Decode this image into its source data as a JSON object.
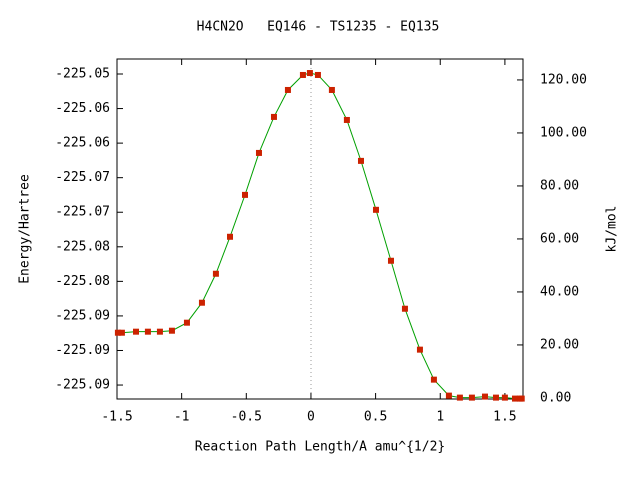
{
  "chart_data": {
    "type": "line",
    "title": "H4CN2O   EQ146 - TS1235 - EQ135",
    "xlabel": "Reaction Path Length/A amu^{1/2}",
    "ylabel": "Energy/Hartree",
    "y2label": "kJ/mol",
    "x": [
      -1.493,
      -1.462,
      -1.353,
      -1.261,
      -1.168,
      -1.075,
      -0.959,
      -0.843,
      -0.735,
      -0.626,
      -0.51,
      -0.402,
      -0.286,
      -0.178,
      -0.062,
      -0.008,
      0.054,
      0.162,
      0.278,
      0.387,
      0.503,
      0.619,
      0.727,
      0.843,
      0.951,
      1.067,
      1.152,
      1.245,
      1.346,
      1.431,
      1.5,
      1.578,
      1.616,
      1.63
    ],
    "values": [
      -225.08743,
      -225.08743,
      -225.08728,
      -225.08728,
      -225.08728,
      -225.08714,
      -225.08598,
      -225.08309,
      -225.0789,
      -225.07355,
      -225.06749,
      -225.06142,
      -225.05621,
      -225.05231,
      -225.05014,
      -225.04986,
      -225.05014,
      -225.05231,
      -225.05665,
      -225.06257,
      -225.06965,
      -225.07702,
      -225.08396,
      -225.08988,
      -225.09422,
      -225.09653,
      -225.09682,
      -225.09682,
      -225.09667,
      -225.09682,
      -225.09682,
      -225.09696,
      -225.09696,
      -225.09696
    ],
    "line_color": "#00a000",
    "marker_color": "#cc2200",
    "xlim": [
      -1.5,
      1.64
    ],
    "xticks": [
      -1.5,
      -1,
      -0.5,
      0,
      0.5,
      1,
      1.5
    ],
    "ylim": [
      -225.09702,
      -225.04783
    ],
    "yticks": [
      {
        "value": -225.095,
        "label": "-225.09"
      },
      {
        "value": -225.09,
        "label": "-225.09"
      },
      {
        "value": -225.085,
        "label": "-225.09"
      },
      {
        "value": -225.08,
        "label": "-225.08"
      },
      {
        "value": -225.075,
        "label": "-225.08"
      },
      {
        "value": -225.07,
        "label": "-225.07"
      },
      {
        "value": -225.065,
        "label": "-225.07"
      },
      {
        "value": -225.06,
        "label": "-225.06"
      },
      {
        "value": -225.055,
        "label": "-225.06"
      },
      {
        "value": -225.05,
        "label": "-225.05"
      }
    ],
    "y2lim": [
      -0.4,
      127.9
    ],
    "y2ticks": [
      {
        "value": 0,
        "label": "0.00"
      },
      {
        "value": 20,
        "label": "20.00"
      },
      {
        "value": 40,
        "label": "40.00"
      },
      {
        "value": 60,
        "label": "60.00"
      },
      {
        "value": 80,
        "label": "80.00"
      },
      {
        "value": 100,
        "label": "100.00"
      },
      {
        "value": 120,
        "label": "120.00"
      }
    ]
  }
}
